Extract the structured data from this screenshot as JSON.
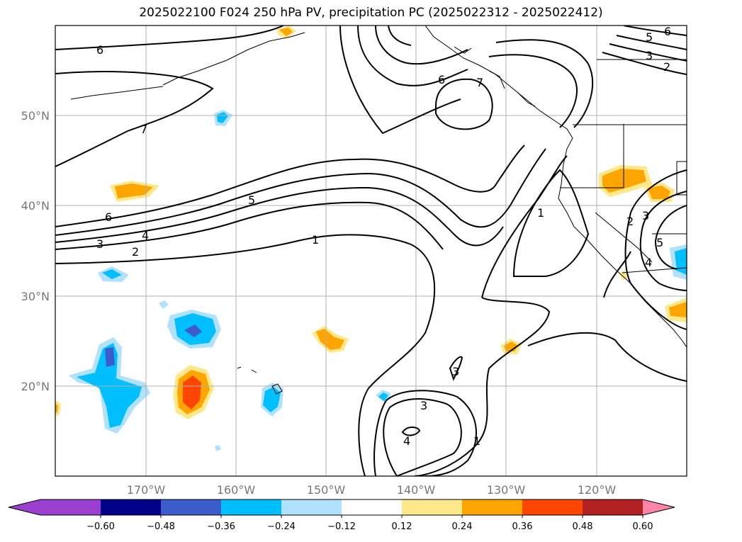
{
  "title": "2025022100 F024 250 hPa PV, precipitation PC (2025022312 - 2025022412)",
  "chart_data": {
    "type": "map-contour",
    "x_ticks": [
      "170°W",
      "160°W",
      "150°W",
      "140°W",
      "130°W",
      "120°W"
    ],
    "y_ticks": [
      "50°N",
      "40°N",
      "30°N",
      "20°N"
    ],
    "pv_contour_labels": [
      "6",
      "7",
      "5",
      "6",
      "4",
      "3",
      "2",
      "1",
      "6",
      "7",
      "1",
      "2",
      "3",
      "5",
      "4",
      "3",
      "3",
      "4",
      "1",
      "5",
      "6",
      "3",
      "2"
    ],
    "colorbar": {
      "levels": [
        -0.6,
        -0.48,
        -0.36,
        -0.24,
        -0.12,
        0.12,
        0.24,
        0.36,
        0.48,
        0.6
      ],
      "labels": [
        "−0.60",
        "−0.48",
        "−0.36",
        "−0.24",
        "−0.12",
        "0.12",
        "0.24",
        "0.36",
        "0.48",
        "0.60"
      ],
      "colors": [
        "#9b3fd0",
        "#00008b",
        "#3c5ccc",
        "#00bfff",
        "#b0e2ff",
        "#ffffff",
        "#ffe88a",
        "#ffa500",
        "#ff4500",
        "#b22222",
        "#ff85a8"
      ]
    }
  }
}
